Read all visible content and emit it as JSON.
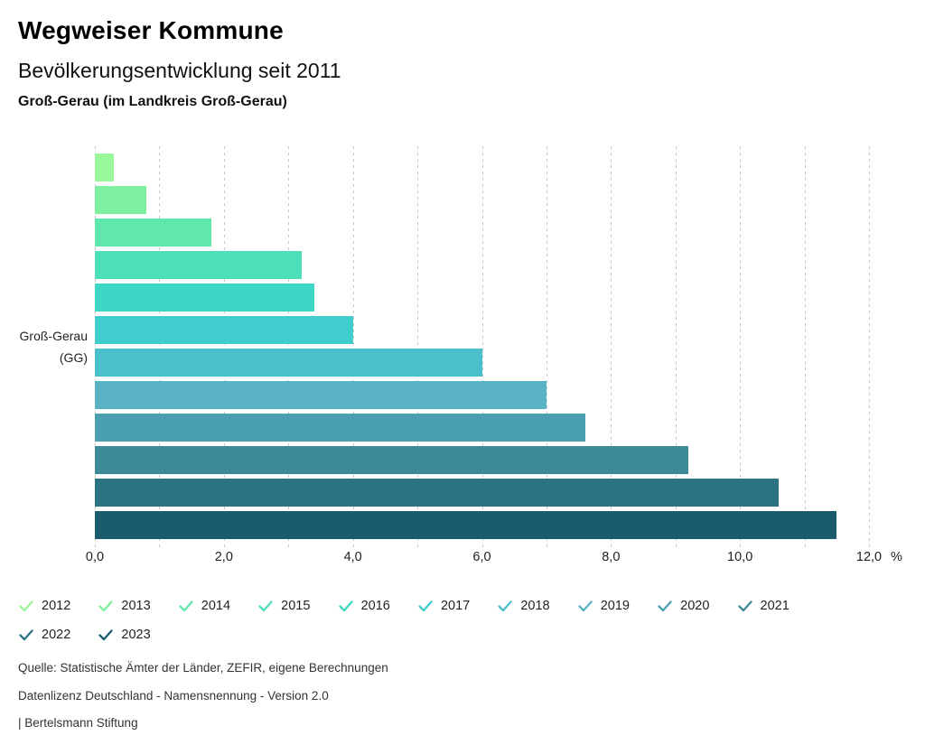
{
  "header": {
    "title": "Wegweiser Kommune",
    "subtitle": "Bevölkerungsentwicklung seit 2011",
    "region": "Groß-Gerau (im Landkreis Groß-Gerau)"
  },
  "chart_data": {
    "type": "bar",
    "orientation": "horizontal",
    "group_label_line1": "Groß-Gerau",
    "group_label_line2": "(GG)",
    "series": [
      {
        "name": "2012",
        "value": 0.3,
        "color": "#9af79a"
      },
      {
        "name": "2013",
        "value": 0.8,
        "color": "#7def9e"
      },
      {
        "name": "2014",
        "value": 1.8,
        "color": "#5fe7ac"
      },
      {
        "name": "2015",
        "value": 3.2,
        "color": "#4cdfb8"
      },
      {
        "name": "2016",
        "value": 3.4,
        "color": "#3ed6c5"
      },
      {
        "name": "2017",
        "value": 4.0,
        "color": "#41cccd"
      },
      {
        "name": "2018",
        "value": 6.0,
        "color": "#4cc0ca"
      },
      {
        "name": "2019",
        "value": 7.0,
        "color": "#5ab3c5"
      },
      {
        "name": "2020",
        "value": 7.6,
        "color": "#4aa0b1"
      },
      {
        "name": "2021",
        "value": 9.2,
        "color": "#3e8a99"
      },
      {
        "name": "2022",
        "value": 10.6,
        "color": "#2b7381"
      },
      {
        "name": "2023",
        "value": 11.5,
        "color": "#1a5c6c"
      }
    ],
    "xlim": [
      0,
      12
    ],
    "x_minor_grid_step": 1,
    "x_ticks": [
      {
        "value": 0,
        "label": "0,0"
      },
      {
        "value": 2,
        "label": "2,0"
      },
      {
        "value": 4,
        "label": "4,0"
      },
      {
        "value": 6,
        "label": "6,0"
      },
      {
        "value": 8,
        "label": "8,0"
      },
      {
        "value": 10,
        "label": "10,0"
      },
      {
        "value": 12,
        "label": "12,0"
      }
    ],
    "x_unit": "%",
    "grid": true,
    "legend_position": "bottom"
  },
  "footer": {
    "source": "Quelle: Statistische Ämter der Länder, ZEFIR, eigene Berechnungen",
    "license": "Datenlizenz Deutschland - Namensnennung - Version 2.0",
    "attribution": "| Bertelsmann Stiftung"
  }
}
